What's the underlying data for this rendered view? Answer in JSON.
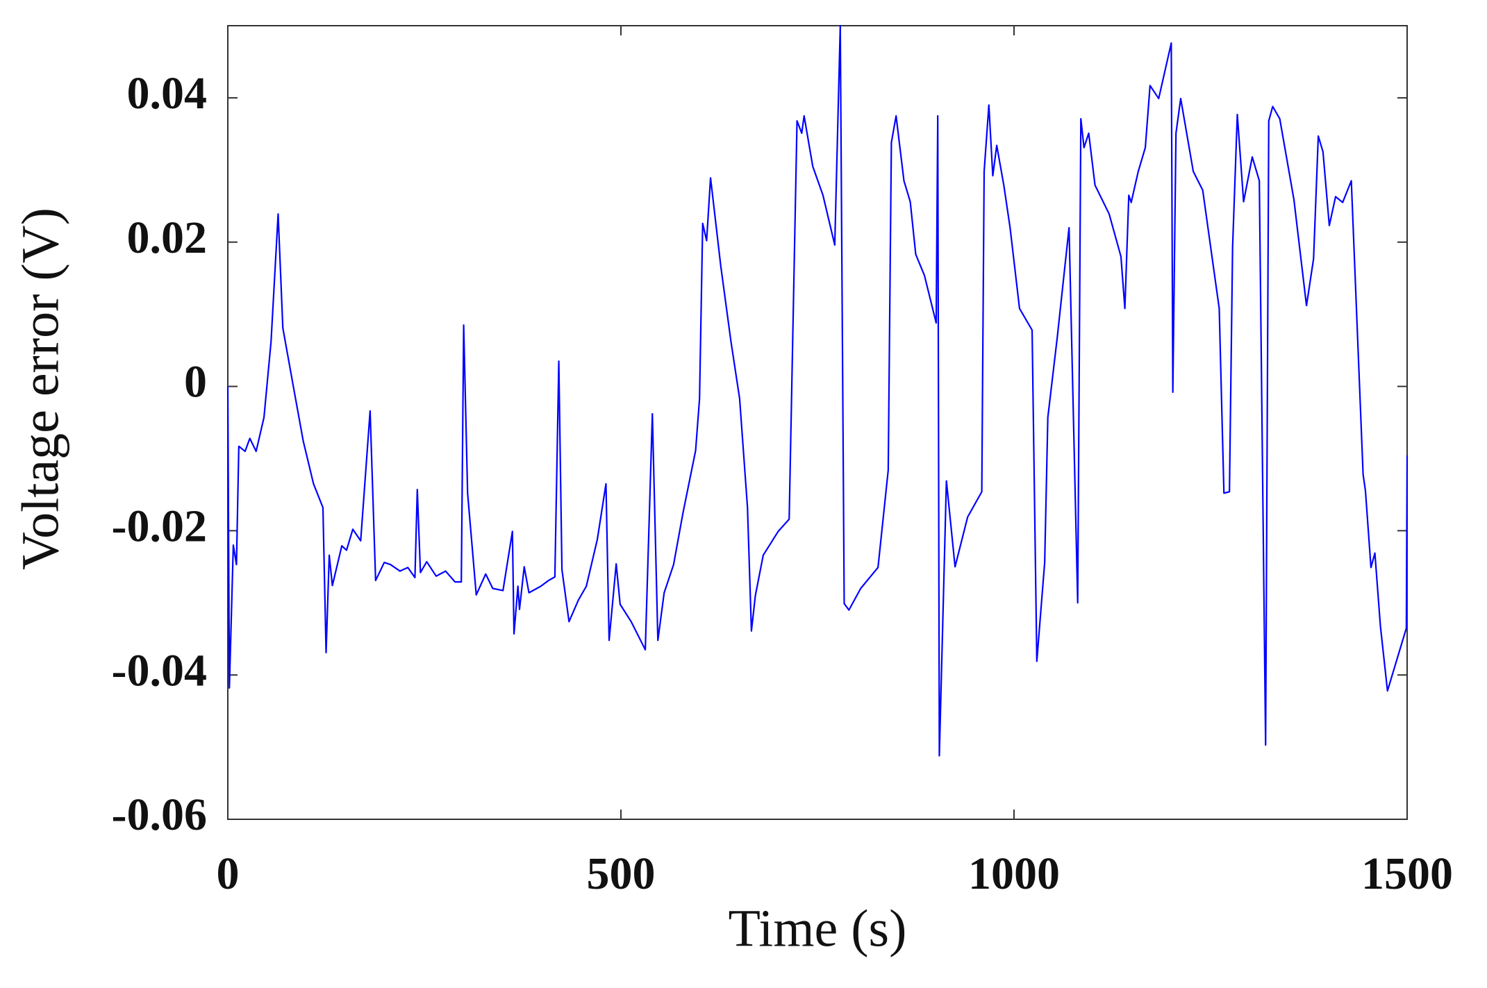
{
  "chart_data": {
    "type": "line",
    "xlabel": "Time (s)",
    "ylabel": "Voltage error (V)",
    "xlim": [
      0,
      1500
    ],
    "ylim": [
      -0.06,
      0.05
    ],
    "xticks": [
      0,
      500,
      1000,
      1500
    ],
    "yticks": [
      -0.06,
      -0.04,
      -0.02,
      0,
      0.02,
      0.04
    ],
    "color": "#0000ff",
    "x": [
      0,
      2,
      7,
      11,
      14,
      22,
      28,
      36,
      46,
      55,
      64,
      70,
      84,
      96,
      109,
      121,
      125,
      129,
      133,
      145,
      151,
      159,
      169,
      181,
      188,
      199,
      207,
      219,
      229,
      238,
      241,
      245,
      253,
      265,
      277,
      289,
      297,
      300,
      305,
      316,
      328,
      337,
      350,
      362,
      364,
      369,
      371,
      377,
      383,
      398,
      408,
      416,
      421,
      425,
      434,
      446,
      456,
      470,
      481,
      485,
      494,
      499,
      513,
      531,
      540,
      547,
      555,
      567,
      579,
      595,
      600,
      604,
      609,
      614,
      627,
      640,
      651,
      661,
      666,
      671,
      681,
      700,
      714,
      724,
      730,
      733,
      744,
      757,
      772,
      779,
      784,
      790,
      805,
      827,
      840,
      844,
      850,
      860,
      868,
      875,
      886,
      901,
      903,
      905,
      914,
      925,
      941,
      959,
      962,
      968,
      973,
      978,
      987,
      995,
      1007,
      1023,
      1029,
      1039,
      1043,
      1055,
      1070,
      1081,
      1085,
      1089,
      1095,
      1103,
      1121,
      1136,
      1141,
      1146,
      1149,
      1158,
      1167,
      1173,
      1184,
      1200,
      1202,
      1206,
      1212,
      1228,
      1240,
      1261,
      1267,
      1274,
      1278,
      1284,
      1292,
      1303,
      1312,
      1320,
      1324,
      1329,
      1338,
      1356,
      1372,
      1381,
      1387,
      1393,
      1401,
      1409,
      1418,
      1429,
      1444,
      1447,
      1454,
      1459,
      1466,
      1475,
      1499,
      1500
    ],
    "values": [
      0,
      -0.0418,
      -0.022,
      -0.0247,
      -0.0083,
      -0.009,
      -0.0072,
      -0.009,
      -0.0043,
      0.0062,
      0.0239,
      0.0081,
      -0.0004,
      -0.0076,
      -0.0135,
      -0.0168,
      -0.0369,
      -0.0234,
      -0.0276,
      -0.0221,
      -0.0227,
      -0.0198,
      -0.0214,
      -0.0034,
      -0.0269,
      -0.0244,
      -0.0247,
      -0.0256,
      -0.0251,
      -0.0265,
      -0.0143,
      -0.0258,
      -0.0243,
      -0.0263,
      -0.0256,
      -0.0271,
      -0.0271,
      0.0085,
      -0.0148,
      -0.0289,
      -0.026,
      -0.028,
      -0.0283,
      -0.0201,
      -0.0343,
      -0.0277,
      -0.0309,
      -0.025,
      -0.0286,
      -0.0277,
      -0.0269,
      -0.0264,
      0.0035,
      -0.0254,
      -0.0326,
      -0.0296,
      -0.0277,
      -0.0212,
      -0.0135,
      -0.0352,
      -0.0246,
      -0.0302,
      -0.0326,
      -0.0365,
      -0.0038,
      -0.0352,
      -0.0286,
      -0.0247,
      -0.0175,
      -0.0089,
      -0.0017,
      0.0226,
      0.0202,
      0.0289,
      0.0167,
      0.0062,
      -0.0017,
      -0.0168,
      -0.0339,
      -0.029,
      -0.0234,
      -0.0201,
      -0.0184,
      0.0368,
      0.0351,
      0.0375,
      0.0305,
      0.0265,
      0.0196,
      0.05,
      -0.0301,
      -0.031,
      -0.028,
      -0.0251,
      -0.0116,
      0.0338,
      0.0375,
      0.0285,
      0.0256,
      0.0183,
      0.0154,
      0.0088,
      0.0375,
      -0.0512,
      -0.0131,
      -0.025,
      -0.0181,
      -0.0146,
      0.0298,
      0.039,
      0.0292,
      0.0334,
      0.0279,
      0.022,
      0.0108,
      0.0078,
      -0.0381,
      -0.0244,
      -0.0043,
      0.0068,
      0.022,
      -0.03,
      0.0371,
      0.0331,
      0.0351,
      0.0279,
      0.0239,
      0.018,
      0.0108,
      0.0265,
      0.0255,
      0.0298,
      0.0331,
      0.0417,
      0.0399,
      0.0476,
      -0.0008,
      0.0351,
      0.0399,
      0.0298,
      0.0272,
      0.0108,
      -0.0148,
      -0.0146,
      0.0193,
      0.0377,
      0.0256,
      0.0318,
      0.0285,
      -0.0497,
      0.0368,
      0.0388,
      0.0371,
      0.0259,
      0.0112,
      0.0177,
      0.0347,
      0.0325,
      0.0223,
      0.0263,
      0.0255,
      0.0285,
      -0.0122,
      -0.0145,
      -0.0251,
      -0.0231,
      -0.0332,
      -0.0422,
      -0.0335,
      -0.0096
    ]
  }
}
